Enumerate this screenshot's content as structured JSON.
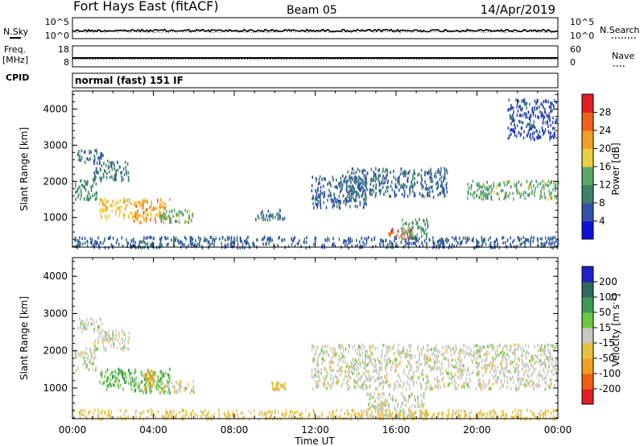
{
  "header": {
    "station": "Fort Hays East (fitACF)",
    "beam": "Beam 05",
    "date": "14/Apr/2019"
  },
  "side_labels": {
    "n_sky": "N.Sky",
    "n_search": "N.Search",
    "freq_line1": "Freq.",
    "freq_line2": "[MHz]",
    "nave": "Nave",
    "cpid": "CPID"
  },
  "cpid_text": "normal (fast) 151 IF",
  "chart_data": [
    {
      "type": "line",
      "name": "noise_panel",
      "y_tick_labels_left": [
        "10^5",
        "10^0"
      ],
      "y_tick_labels_right": [
        "10^5",
        "10^0"
      ],
      "series": [
        {
          "name": "N.Sky",
          "style": "solid",
          "approx_level": "mid, near 10^1-10^2"
        },
        {
          "name": "N.Search",
          "style": "dotted",
          "approx_level": "mid, near 10^1-10^2"
        }
      ]
    },
    {
      "type": "line",
      "name": "freq_nave_panel",
      "y_tick_labels_left": [
        "18",
        "8"
      ],
      "y_tick_labels_right": [
        "60",
        "0"
      ],
      "series": [
        {
          "name": "Freq. [MHz]",
          "style": "solid",
          "approx_value": 10.5
        },
        {
          "name": "Nave",
          "style": "dotted",
          "approx_value": 20
        }
      ]
    },
    {
      "type": "heatmap",
      "name": "power",
      "x": {
        "label": "Time UT",
        "range": [
          0,
          24
        ],
        "tick_labels": [
          "00:00",
          "04:00",
          "08:00",
          "12:00",
          "16:00",
          "20:00",
          "00:00"
        ]
      },
      "y": {
        "label": "Slant Range [km]",
        "range": [
          180,
          4500
        ],
        "tick_labels": [
          "1000",
          "2000",
          "3000",
          "4000"
        ]
      },
      "colorbar": {
        "label": "Power [dB]",
        "tick_labels": [
          "4",
          "8",
          "12",
          "16",
          "20",
          "24",
          "28"
        ],
        "range": [
          0,
          32
        ],
        "colors": [
          "#1010d8",
          "#2f52a8",
          "#3d7f6a",
          "#5aa86a",
          "#e8d040",
          "#f0a028",
          "#ee6020",
          "#e02020"
        ]
      },
      "regions": [
        {
          "t": [
            0.1,
            1.2
          ],
          "r": [
            1500,
            2100
          ],
          "power": 11
        },
        {
          "t": [
            0.2,
            1.5
          ],
          "r": [
            2550,
            2900
          ],
          "power": 8
        },
        {
          "t": [
            1.0,
            2.8
          ],
          "r": [
            2050,
            2600
          ],
          "power": 9
        },
        {
          "t": [
            1.3,
            3.2
          ],
          "r": [
            1000,
            1550
          ],
          "power": 19
        },
        {
          "t": [
            3.0,
            4.8
          ],
          "r": [
            900,
            1550
          ],
          "power": 22
        },
        {
          "t": [
            4.3,
            6.0
          ],
          "r": [
            900,
            1250
          ],
          "power": 14
        },
        {
          "t": [
            9.0,
            10.5
          ],
          "r": [
            950,
            1250
          ],
          "power": 9
        },
        {
          "t": [
            11.8,
            14.5
          ],
          "r": [
            1300,
            2200
          ],
          "power": 7
        },
        {
          "t": [
            13.5,
            18.5
          ],
          "r": [
            1600,
            2400
          ],
          "power": 8
        },
        {
          "t": [
            15.6,
            16.8
          ],
          "r": [
            450,
            750
          ],
          "power": 26
        },
        {
          "t": [
            16.2,
            17.6
          ],
          "r": [
            500,
            1000
          ],
          "power": 13
        },
        {
          "t": [
            19.5,
            24.0
          ],
          "r": [
            1550,
            2050
          ],
          "power": 14
        },
        {
          "t": [
            21.5,
            23.9
          ],
          "r": [
            3200,
            4300
          ],
          "power": 6
        },
        {
          "t": [
            0.0,
            24.0
          ],
          "r": [
            200,
            500
          ],
          "power": 7
        }
      ]
    },
    {
      "type": "heatmap",
      "name": "velocity",
      "x": {
        "label": "Time UT",
        "range": [
          0,
          24
        ],
        "tick_labels": [
          "00:00",
          "04:00",
          "08:00",
          "12:00",
          "16:00",
          "20:00",
          "00:00"
        ]
      },
      "y": {
        "label": "Slant Range [km]",
        "range": [
          180,
          4500
        ],
        "tick_labels": [
          "1000",
          "2000",
          "3000",
          "4000"
        ]
      },
      "colorbar": {
        "label": "Velocity [m s^-1]",
        "tick_labels": [
          "200",
          "100",
          "50",
          "15",
          "-15",
          "-50",
          "-100",
          "-200"
        ],
        "range": [
          -250,
          250
        ],
        "colors": [
          "#2020c8",
          "#2f6a5a",
          "#3f9a5a",
          "#6cc840",
          "#c8c8c0",
          "#e8c040",
          "#f0a020",
          "#ee6010",
          "#e02020"
        ]
      },
      "regions": [
        {
          "t": [
            0.1,
            1.2
          ],
          "r": [
            1500,
            2100
          ],
          "velocity": 0
        },
        {
          "t": [
            0.2,
            1.5
          ],
          "r": [
            2550,
            2900
          ],
          "velocity": 5
        },
        {
          "t": [
            1.0,
            2.8
          ],
          "r": [
            2050,
            2600
          ],
          "velocity": 0
        },
        {
          "t": [
            1.3,
            3.2
          ],
          "r": [
            1000,
            1550
          ],
          "velocity": 45
        },
        {
          "t": [
            3.0,
            4.8
          ],
          "r": [
            900,
            1550
          ],
          "velocity": 40
        },
        {
          "t": [
            3.5,
            4.0
          ],
          "r": [
            1000,
            1500
          ],
          "velocity": -60
        },
        {
          "t": [
            4.3,
            6.0
          ],
          "r": [
            900,
            1250
          ],
          "velocity": 0
        },
        {
          "t": [
            9.8,
            10.5
          ],
          "r": [
            1000,
            1200
          ],
          "velocity": -40
        },
        {
          "t": [
            11.8,
            24.0
          ],
          "r": [
            1000,
            2200
          ],
          "velocity": 0
        },
        {
          "t": [
            14.5,
            17.5
          ],
          "r": [
            250,
            900
          ],
          "velocity": 0
        },
        {
          "t": [
            0.0,
            24.0
          ],
          "r": [
            200,
            450
          ],
          "velocity": -30
        }
      ]
    }
  ]
}
